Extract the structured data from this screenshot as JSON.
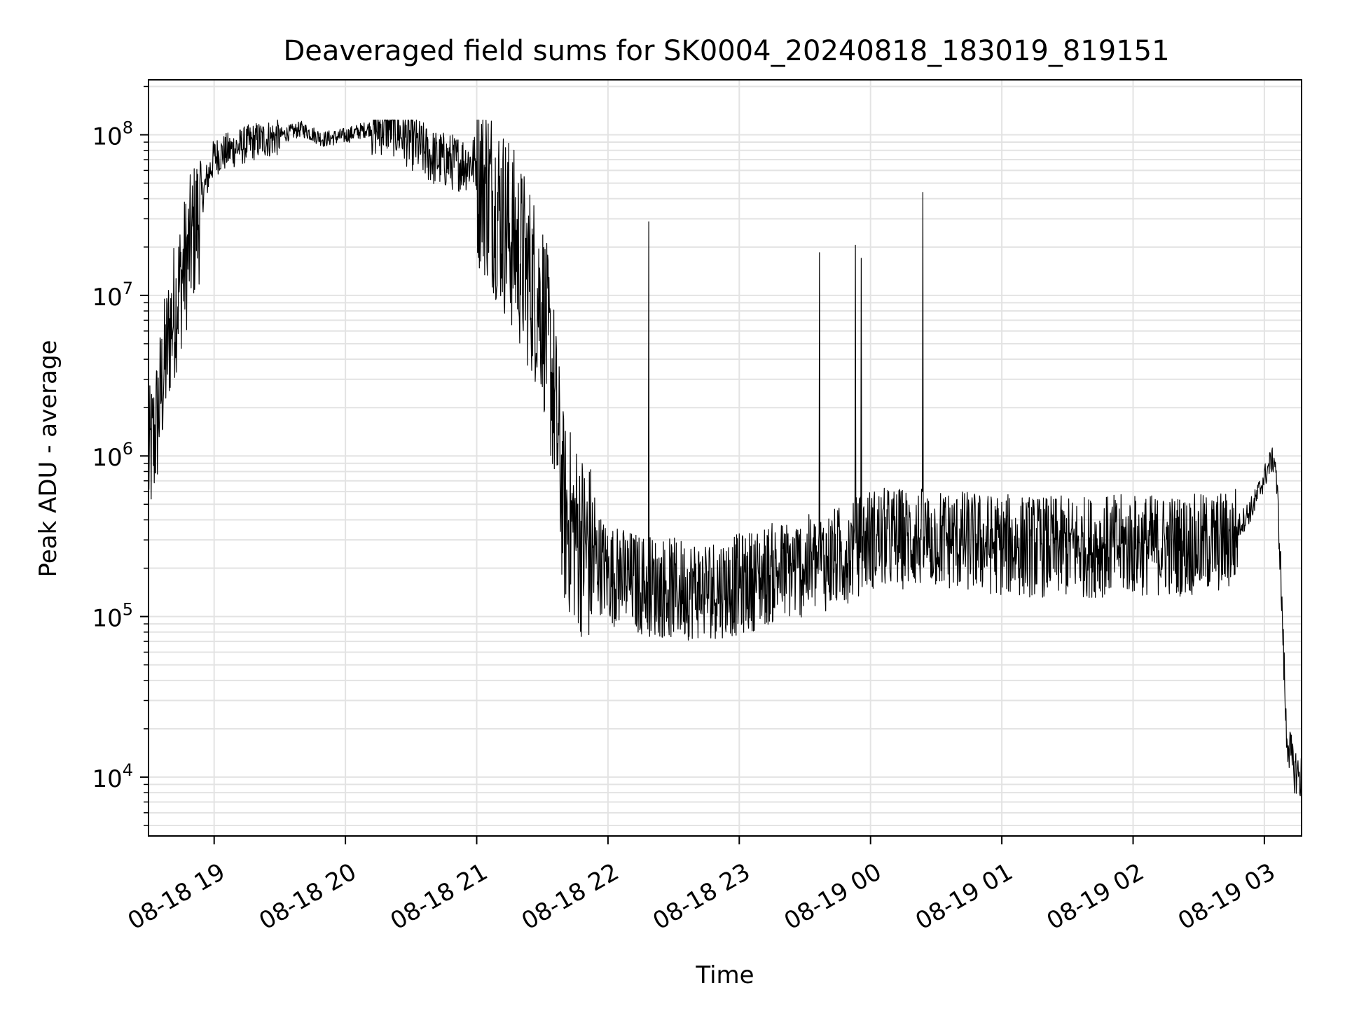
{
  "chart_data": {
    "type": "line",
    "title": "Deaveraged field sums for SK0004_20240818_183019_819151",
    "xlabel": "Time",
    "ylabel": "Peak ADU - average",
    "yscale": "log",
    "ylim": [
      4300,
      220000000
    ],
    "xlim": [
      "2024-08-18 18:30",
      "2024-08-19 03:17"
    ],
    "x_tick_labels": [
      "08-18 19",
      "08-18 20",
      "08-18 21",
      "08-18 22",
      "08-18 23",
      "08-19 00",
      "08-19 01",
      "08-19 02",
      "08-19 03"
    ],
    "y_tick_labels": [
      {
        "base": "10",
        "exp": "4",
        "value": 10000
      },
      {
        "base": "10",
        "exp": "5",
        "value": 100000
      },
      {
        "base": "10",
        "exp": "6",
        "value": 1000000
      },
      {
        "base": "10",
        "exp": "7",
        "value": 10000000
      },
      {
        "base": "10",
        "exp": "8",
        "value": 100000000
      }
    ],
    "grid": true,
    "line_color": "#000000",
    "grid_color": "#e3e3e3",
    "series": [
      {
        "x": [
          "2024-08-18 18:30",
          "2024-08-18 18:33",
          "2024-08-18 18:36",
          "2024-08-18 18:40",
          "2024-08-18 18:45",
          "2024-08-18 18:50",
          "2024-08-18 18:55",
          "2024-08-18 19:00",
          "2024-08-18 19:10",
          "2024-08-18 19:20",
          "2024-08-18 19:30",
          "2024-08-18 19:40",
          "2024-08-18 19:50",
          "2024-08-18 20:00",
          "2024-08-18 20:10",
          "2024-08-18 20:20",
          "2024-08-18 20:30",
          "2024-08-18 20:40",
          "2024-08-18 20:50",
          "2024-08-18 21:00",
          "2024-08-18 21:10",
          "2024-08-18 21:20",
          "2024-08-18 21:30",
          "2024-08-18 21:35",
          "2024-08-18 21:40",
          "2024-08-18 21:50",
          "2024-08-18 22:00",
          "2024-08-18 22:15",
          "2024-08-18 22:30",
          "2024-08-18 22:45",
          "2024-08-18 23:00",
          "2024-08-18 23:15",
          "2024-08-18 23:30",
          "2024-08-18 23:45",
          "2024-08-19 00:00",
          "2024-08-19 00:30",
          "2024-08-19 01:00",
          "2024-08-19 01:30",
          "2024-08-19 02:00",
          "2024-08-19 02:30",
          "2024-08-19 02:45",
          "2024-08-19 02:55",
          "2024-08-19 03:00",
          "2024-08-19 03:03",
          "2024-08-19 03:05",
          "2024-08-19 03:07",
          "2024-08-19 03:10",
          "2024-08-19 03:13",
          "2024-08-19 03:17"
        ],
        "y": [
          1000000,
          1500000,
          3000000,
          7000000,
          14000000,
          25000000,
          45000000,
          75000000,
          85000000,
          95000000,
          100000000,
          110000000,
          95000000,
          100000000,
          110000000,
          120000000,
          95000000,
          75000000,
          70000000,
          70000000,
          40000000,
          20000000,
          10000000,
          3000000,
          500000,
          300000,
          200000,
          170000,
          160000,
          160000,
          170000,
          200000,
          220000,
          250000,
          330000,
          330000,
          300000,
          290000,
          300000,
          300000,
          320000,
          500000,
          750000,
          950000,
          950000,
          300000,
          20000,
          12000,
          10000
        ]
      }
    ]
  }
}
